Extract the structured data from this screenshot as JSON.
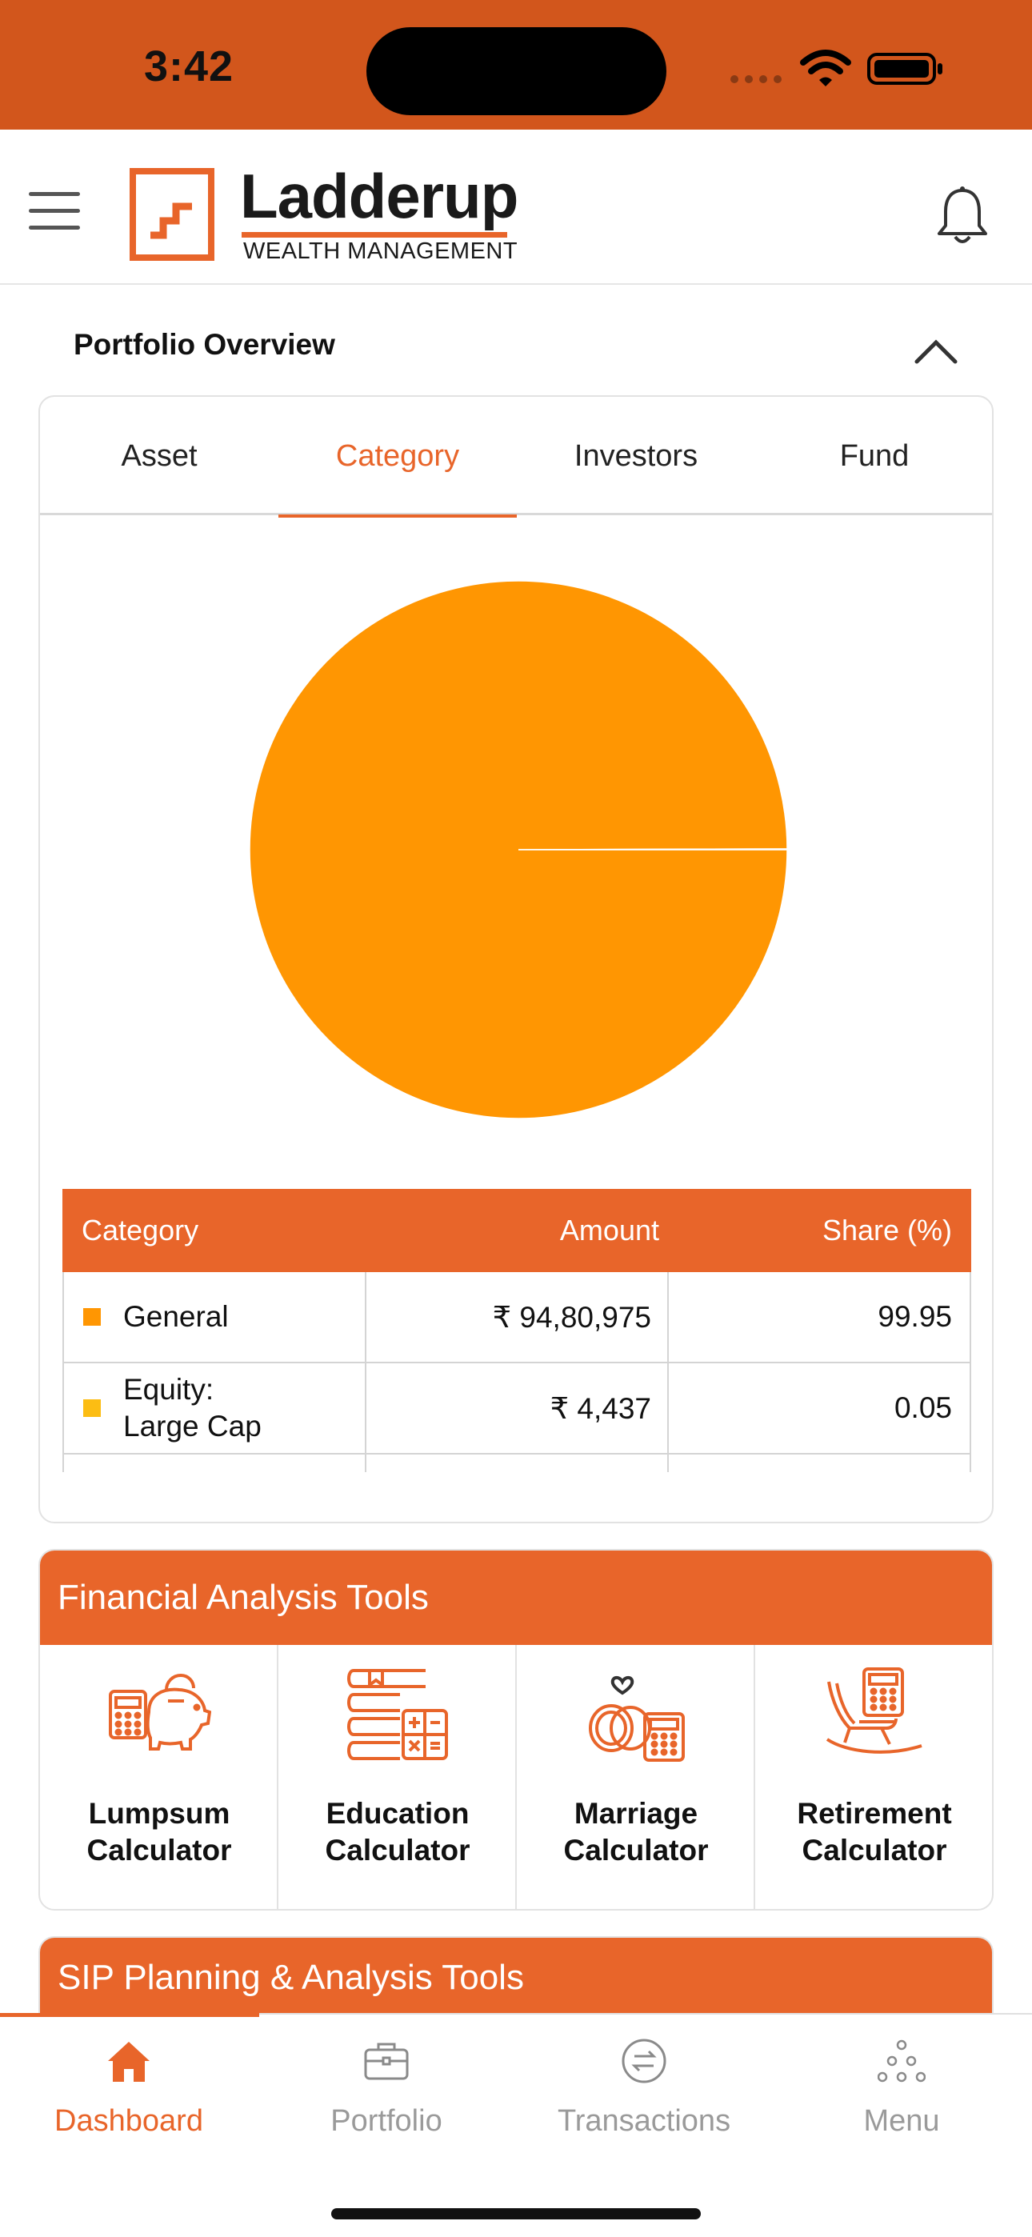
{
  "status_bar": {
    "time": "3:42",
    "bg_color": "#d2561c"
  },
  "header": {
    "brand_name": "Ladderup",
    "brand_tagline": "WEALTH MANAGEMENT",
    "brand_color": "#e8652a",
    "menu_icon": "hamburger-icon",
    "notification_icon": "bell-icon"
  },
  "portfolio": {
    "title": "Portfolio Overview",
    "collapse_icon": "chevron-up-icon",
    "tabs": [
      {
        "label": "Asset",
        "active": false
      },
      {
        "label": "Category",
        "active": true
      },
      {
        "label": "Investors",
        "active": false
      },
      {
        "label": "Fund",
        "active": false
      }
    ],
    "table": {
      "headers": [
        "Category",
        "Amount",
        "Share (%)"
      ],
      "rows": [
        {
          "category": "General",
          "amount": "₹ 94,80,975",
          "share": "99.95",
          "color": "#ff9602"
        },
        {
          "category_line1": "Equity:",
          "category_line2": "Large Cap",
          "amount": "₹ 4,437",
          "share": "0.05",
          "color": "#fcbd13"
        }
      ]
    }
  },
  "chart_data": {
    "type": "pie",
    "categories": [
      "General",
      "Equity: Large Cap"
    ],
    "values": [
      99.95,
      0.05
    ],
    "colors": [
      "#ff9602",
      "#fcbd13"
    ]
  },
  "tools": {
    "title": "Financial Analysis Tools",
    "items": [
      {
        "line1": "Lumpsum",
        "line2": "Calculator",
        "icon": "piggy-bank-calculator-icon"
      },
      {
        "line1": "Education",
        "line2": "Calculator",
        "icon": "books-calculator-icon"
      },
      {
        "line1": "Marriage",
        "line2": "Calculator",
        "icon": "rings-calculator-icon"
      },
      {
        "line1": "Retirement",
        "line2": "Calculator",
        "icon": "rocking-chair-calculator-icon"
      }
    ]
  },
  "sip": {
    "title": "SIP Planning & Analysis Tools"
  },
  "bottom_nav": {
    "items": [
      {
        "label": "Dashboard",
        "icon": "home-icon",
        "active": true
      },
      {
        "label": "Portfolio",
        "icon": "briefcase-icon",
        "active": false
      },
      {
        "label": "Transactions",
        "icon": "transfer-icon",
        "active": false
      },
      {
        "label": "Menu",
        "icon": "dots-menu-icon",
        "active": false
      }
    ]
  }
}
